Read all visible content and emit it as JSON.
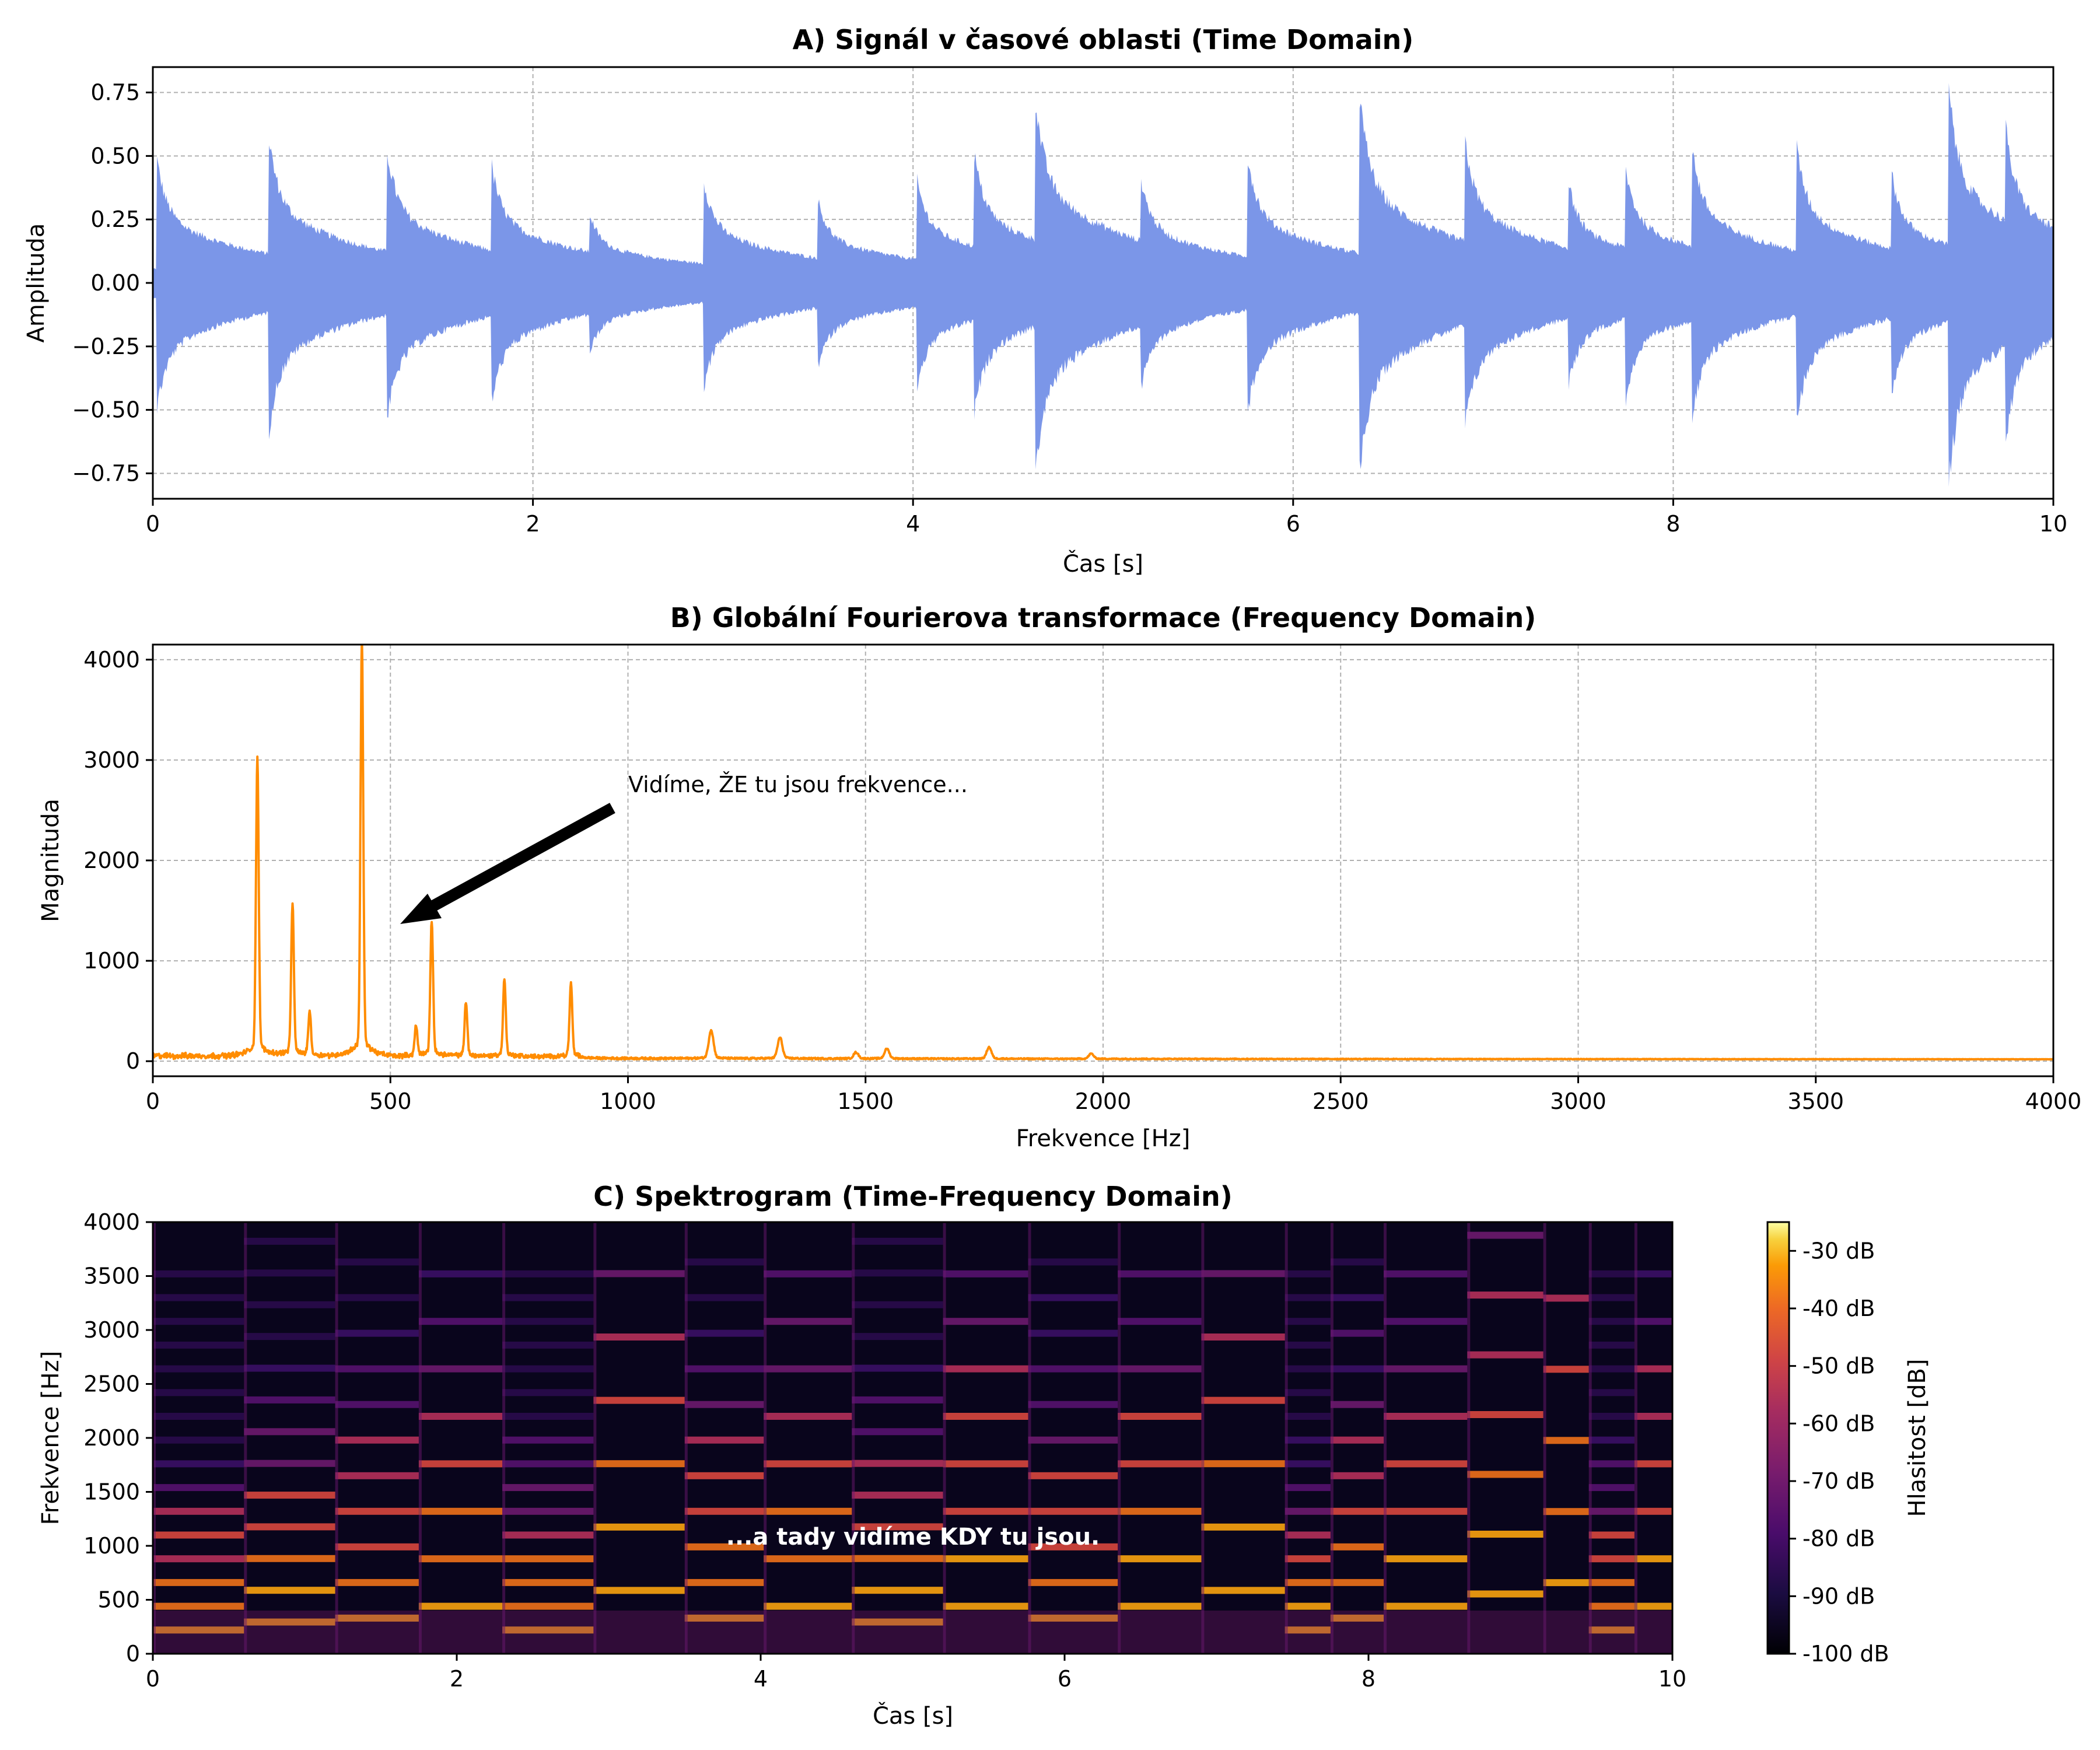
{
  "chart_data": [
    {
      "type": "line",
      "title": "A) Signál v časové oblasti (Time Domain)",
      "xlabel": "Čas [s]",
      "ylabel": "Amplituda",
      "xlim": [
        0,
        10
      ],
      "ylim": [
        -0.85,
        0.85
      ],
      "xticks": [
        "0",
        "2",
        "4",
        "6",
        "8",
        "10"
      ],
      "yticks": [
        "0.75",
        "0.50",
        "0.25",
        "0.00",
        "−0.25",
        "−0.50",
        "−0.75"
      ],
      "grid": true,
      "color": "#7b96e8",
      "onsets": [
        {
          "t": 0.02,
          "amp": 0.49
        },
        {
          "t": 0.61,
          "amp": 0.58
        },
        {
          "t": 1.23,
          "amp": 0.54
        },
        {
          "t": 1.78,
          "amp": 0.47
        },
        {
          "t": 2.3,
          "amp": 0.25
        },
        {
          "t": 2.9,
          "amp": 0.39
        },
        {
          "t": 3.5,
          "amp": 0.31
        },
        {
          "t": 4.02,
          "amp": 0.4
        },
        {
          "t": 4.32,
          "amp": 0.52
        },
        {
          "t": 4.64,
          "amp": 0.77
        },
        {
          "t": 5.2,
          "amp": 0.4
        },
        {
          "t": 5.76,
          "amp": 0.5
        },
        {
          "t": 6.35,
          "amp": 0.75
        },
        {
          "t": 6.9,
          "amp": 0.59
        },
        {
          "t": 7.45,
          "amp": 0.38
        },
        {
          "t": 7.75,
          "amp": 0.44
        },
        {
          "t": 8.1,
          "amp": 0.53
        },
        {
          "t": 8.65,
          "amp": 0.53
        },
        {
          "t": 9.15,
          "amp": 0.42
        },
        {
          "t": 9.45,
          "amp": 0.78
        },
        {
          "t": 9.75,
          "amp": 0.61
        }
      ]
    },
    {
      "type": "line",
      "title": "B) Globální Fourierova transformace (Frequency Domain)",
      "xlabel": "Frekvence [Hz]",
      "ylabel": "Magnituda",
      "xlim": [
        0,
        4000
      ],
      "ylim": [
        -150,
        4150
      ],
      "xticks": [
        "0",
        "500",
        "1000",
        "1500",
        "2000",
        "2500",
        "3000",
        "3500",
        "4000"
      ],
      "yticks": [
        "4000",
        "3000",
        "2000",
        "1000",
        "0"
      ],
      "grid": true,
      "color": "#ff8c00",
      "peaks": [
        {
          "f": 220,
          "m": 2840
        },
        {
          "f": 294,
          "m": 1440
        },
        {
          "f": 330,
          "m": 420
        },
        {
          "f": 440,
          "m": 3970
        },
        {
          "f": 554,
          "m": 280
        },
        {
          "f": 587,
          "m": 1290
        },
        {
          "f": 659,
          "m": 520
        },
        {
          "f": 740,
          "m": 740
        },
        {
          "f": 880,
          "m": 700
        },
        {
          "f": 1175,
          "m": 270
        },
        {
          "f": 1320,
          "m": 200
        },
        {
          "f": 1480,
          "m": 60
        },
        {
          "f": 1545,
          "m": 95
        },
        {
          "f": 1760,
          "m": 110
        },
        {
          "f": 1975,
          "m": 50
        }
      ],
      "annotation": {
        "text": "Vidíme, ŽE tu jsou frekvence...",
        "xy": [
          520,
          1380
        ],
        "xytext": [
          1000,
          2680
        ]
      }
    },
    {
      "type": "heatmap",
      "title": "C) Spektrogram (Time-Frequency Domain)",
      "xlabel": "Čas [s]",
      "ylabel": "Frekvence [Hz]",
      "xlim": [
        0,
        10
      ],
      "ylim": [
        0,
        4000
      ],
      "xticks": [
        "0",
        "2",
        "4",
        "6",
        "8",
        "10"
      ],
      "yticks": [
        "4000",
        "3500",
        "3000",
        "2500",
        "2000",
        "1500",
        "1000",
        "500",
        "0"
      ],
      "colorbar": {
        "label": "Hlasitost [dB]",
        "range": [
          -100,
          -25
        ],
        "ticks": [
          "-30 dB",
          "-40 dB",
          "-50 dB",
          "-60 dB",
          "-70 dB",
          "-80 dB",
          "-90 dB",
          "-100 dB"
        ]
      },
      "colormap": "inferno",
      "annotation": {
        "text": "...a tady vidíme KDY tu jsou.",
        "x": 5,
        "y": 1050
      },
      "segment_boundaries": [
        0,
        0.6,
        1.2,
        1.75,
        2.3,
        2.9,
        3.5,
        4.02,
        4.6,
        5.2,
        5.76,
        6.35,
        6.9,
        7.45,
        7.75,
        8.1,
        8.65,
        9.15,
        9.45,
        9.75,
        10
      ]
    }
  ]
}
